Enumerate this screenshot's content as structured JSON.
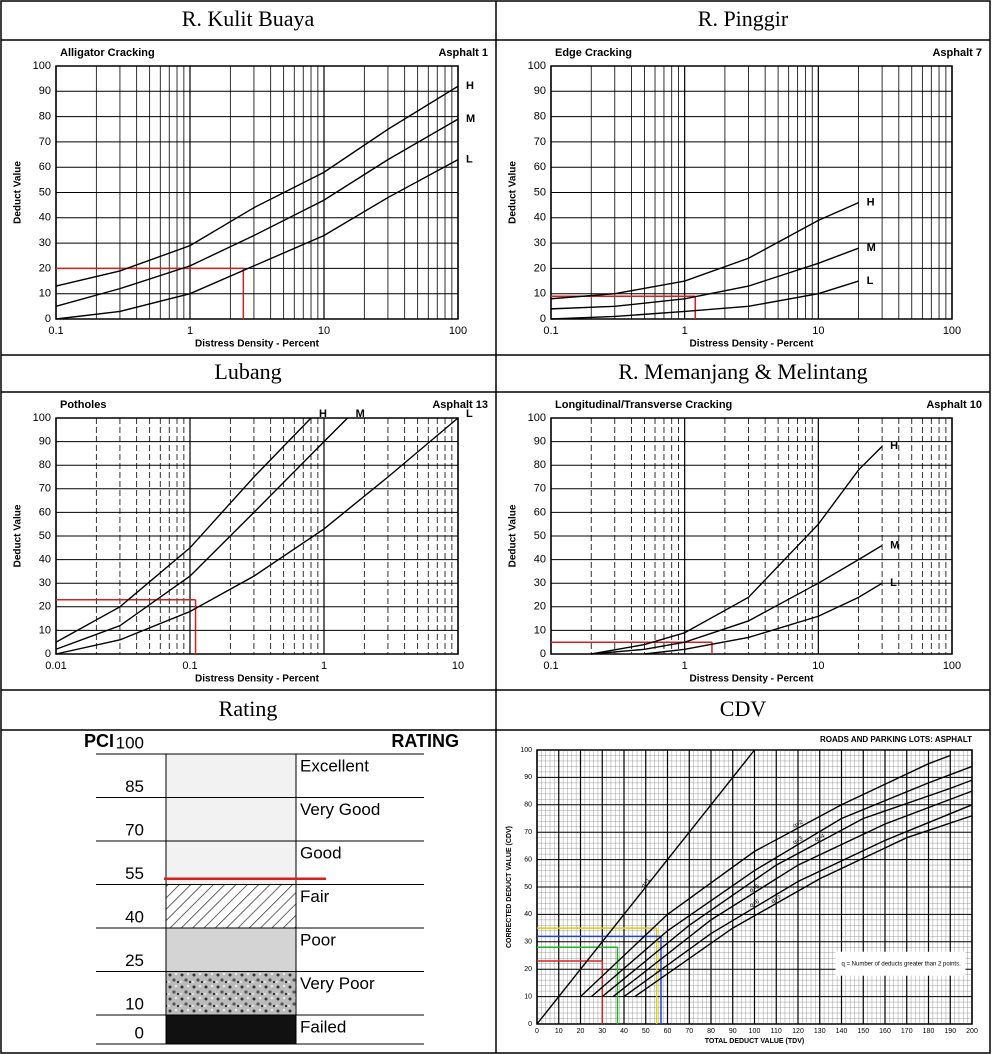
{
  "table": {
    "headers": [
      "R. Kulit Buaya",
      "R. Pinggir",
      "Lubang",
      "R. Memanjang & Melintang",
      "Rating",
      "CDV"
    ]
  },
  "chart_data": [
    {
      "type": "line",
      "title": "Alligator Cracking",
      "subtitle": "Asphalt 1",
      "xlabel": "Distress Density - Percent",
      "ylabel": "Deduct Value",
      "xscale": "log",
      "xlim": [
        0.1,
        100
      ],
      "ylim": [
        0,
        100
      ],
      "xticks": [
        0.1,
        1,
        10,
        100
      ],
      "yticks": [
        0,
        10,
        20,
        30,
        40,
        50,
        60,
        70,
        80,
        90,
        100
      ],
      "grid": true,
      "series": [
        {
          "name": "H",
          "color": "#000000",
          "x": [
            0.1,
            0.3,
            1,
            3,
            10,
            30,
            100
          ],
          "values": [
            13,
            19,
            29,
            44,
            58,
            75,
            92
          ]
        },
        {
          "name": "M",
          "color": "#000000",
          "x": [
            0.1,
            0.3,
            1,
            3,
            10,
            30,
            100
          ],
          "values": [
            5,
            12,
            21,
            33,
            47,
            63,
            79
          ]
        },
        {
          "name": "L",
          "color": "#000000",
          "x": [
            0.1,
            0.3,
            1,
            3,
            10,
            30,
            100
          ],
          "values": [
            0,
            3,
            10,
            21,
            33,
            48,
            63
          ]
        }
      ],
      "guides": [
        {
          "x": 2.5,
          "y": 20,
          "color": "#d62020"
        }
      ]
    },
    {
      "type": "line",
      "title": "Edge Cracking",
      "subtitle": "Asphalt 7",
      "xlabel": "Distress Density - Percent",
      "ylabel": "Deduct Value",
      "xscale": "log",
      "xlim": [
        0.1,
        100
      ],
      "ylim": [
        0,
        100
      ],
      "xticks": [
        0.1,
        1,
        10,
        100
      ],
      "yticks": [
        0,
        10,
        20,
        30,
        40,
        50,
        60,
        70,
        80,
        90,
        100
      ],
      "grid": true,
      "series": [
        {
          "name": "H",
          "color": "#000000",
          "x": [
            0.1,
            0.3,
            1,
            3,
            10,
            20
          ],
          "values": [
            8,
            10,
            15,
            24,
            39,
            46
          ]
        },
        {
          "name": "M",
          "color": "#000000",
          "x": [
            0.1,
            0.3,
            1,
            3,
            10,
            20
          ],
          "values": [
            4,
            5,
            8,
            13,
            22,
            28
          ]
        },
        {
          "name": "L",
          "color": "#000000",
          "x": [
            0.1,
            0.3,
            1,
            3,
            10,
            20
          ],
          "values": [
            0,
            1,
            3,
            5,
            10,
            15
          ]
        }
      ],
      "guides": [
        {
          "x": 1.2,
          "y": 9,
          "color": "#d62020"
        }
      ]
    },
    {
      "type": "line",
      "title": "Potholes",
      "subtitle": "Asphalt 13",
      "xlabel": "Distress Density - Percent",
      "ylabel": "Deduct Value",
      "xscale": "log",
      "xlim": [
        0.01,
        10
      ],
      "ylim": [
        0,
        100
      ],
      "xticks": [
        0.01,
        0.1,
        1,
        10
      ],
      "yticks": [
        0,
        10,
        20,
        30,
        40,
        50,
        60,
        70,
        80,
        90,
        100
      ],
      "grid": true,
      "series": [
        {
          "name": "H",
          "color": "#000000",
          "x": [
            0.01,
            0.03,
            0.1,
            0.3,
            0.8
          ],
          "values": [
            5,
            20,
            45,
            75,
            100
          ]
        },
        {
          "name": "M",
          "color": "#000000",
          "x": [
            0.01,
            0.03,
            0.1,
            0.3,
            1,
            1.5
          ],
          "values": [
            2,
            12,
            33,
            60,
            90,
            100
          ]
        },
        {
          "name": "L",
          "color": "#000000",
          "x": [
            0.01,
            0.03,
            0.1,
            0.3,
            1,
            3,
            10
          ],
          "values": [
            0,
            6,
            18,
            33,
            53,
            75,
            100
          ]
        }
      ],
      "guides": [
        {
          "x": 0.11,
          "y": 23,
          "color": "#d62020"
        }
      ]
    },
    {
      "type": "line",
      "title": "Longitudinal/Transverse Cracking",
      "subtitle": "Asphalt 10",
      "xlabel": "Distress Density - Percent",
      "ylabel": "Deduct Value",
      "xscale": "log",
      "xlim": [
        0.1,
        100
      ],
      "ylim": [
        0,
        100
      ],
      "xticks": [
        0.1,
        1,
        10,
        100
      ],
      "yticks": [
        0,
        10,
        20,
        30,
        40,
        50,
        60,
        70,
        80,
        90,
        100
      ],
      "grid": true,
      "series": [
        {
          "name": "H",
          "color": "#000000",
          "x": [
            0.2,
            0.5,
            1,
            3,
            10,
            20,
            30
          ],
          "values": [
            0,
            4,
            9,
            24,
            55,
            78,
            88
          ]
        },
        {
          "name": "M",
          "color": "#000000",
          "x": [
            0.2,
            0.5,
            1,
            3,
            10,
            20,
            30
          ],
          "values": [
            0,
            2,
            5,
            14,
            30,
            40,
            46
          ]
        },
        {
          "name": "L",
          "color": "#000000",
          "x": [
            0.5,
            1,
            3,
            10,
            20,
            30
          ],
          "values": [
            0,
            2,
            7,
            16,
            24,
            30
          ]
        }
      ],
      "guides": [
        {
          "x": 1.6,
          "y": 5,
          "color": "#d62020"
        }
      ]
    },
    {
      "type": "rating",
      "title": "PCI",
      "subtitle": "RATING",
      "levels": [
        100,
        85,
        70,
        55,
        40,
        25,
        10,
        0
      ],
      "labels": [
        "Excellent",
        "Very Good",
        "Good",
        "Fair",
        "Poor",
        "Very Poor",
        "Failed"
      ],
      "band_styles": [
        "light",
        "light",
        "light",
        "hatched",
        "grey",
        "speckled",
        "black"
      ],
      "marker": {
        "value": 57,
        "color": "#d62020"
      }
    },
    {
      "type": "line",
      "title": "ROADS AND PARKING LOTS: ASPHALT",
      "xlabel": "TOTAL DEDUCT VALUE (TDV)",
      "ylabel": "CORRECTED DEDUCT VALUE (CDV)",
      "xscale": "linear",
      "xlim": [
        0,
        200
      ],
      "ylim": [
        0,
        100
      ],
      "xticks": [
        0,
        10,
        20,
        30,
        40,
        50,
        60,
        70,
        80,
        90,
        100,
        110,
        120,
        130,
        140,
        150,
        160,
        170,
        180,
        190,
        200
      ],
      "yticks": [
        0,
        10,
        20,
        30,
        40,
        50,
        60,
        70,
        80,
        90,
        100
      ],
      "grid": true,
      "fine_grid": true,
      "note": "q = Number of deducts greater than 2 points.",
      "series": [
        {
          "name": "q=1",
          "color": "#000000",
          "x": [
            0,
            100
          ],
          "values": [
            0,
            100
          ]
        },
        {
          "name": "q=2",
          "color": "#000000",
          "x": [
            20,
            60,
            100,
            140,
            180,
            190
          ],
          "values": [
            10,
            40,
            63,
            80,
            95,
            98
          ]
        },
        {
          "name": "q=3",
          "color": "#000000",
          "x": [
            25,
            60,
            100,
            140,
            180,
            200
          ],
          "values": [
            10,
            34,
            56,
            75,
            88,
            94
          ]
        },
        {
          "name": "q=4",
          "color": "#000000",
          "x": [
            30,
            70,
            110,
            150,
            190,
            200
          ],
          "values": [
            10,
            36,
            58,
            75,
            86,
            89
          ]
        },
        {
          "name": "q=5",
          "color": "#000000",
          "x": [
            35,
            80,
            120,
            160,
            200
          ],
          "values": [
            10,
            38,
            58,
            73,
            85
          ]
        },
        {
          "name": "q=6",
          "color": "#000000",
          "x": [
            40,
            80,
            120,
            160,
            200
          ],
          "values": [
            10,
            33,
            52,
            67,
            80
          ]
        },
        {
          "name": "q=7",
          "color": "#000000",
          "x": [
            45,
            90,
            130,
            170,
            200
          ],
          "values": [
            10,
            35,
            53,
            68,
            76
          ]
        }
      ],
      "guides": [
        {
          "x": 30,
          "y": 23,
          "color": "#e02020"
        },
        {
          "x": 37,
          "y": 28,
          "color": "#20b020"
        },
        {
          "x": 55,
          "y": 35,
          "color": "#e0d000"
        },
        {
          "x": 57,
          "y": 32,
          "color": "#2040e0"
        }
      ]
    }
  ]
}
